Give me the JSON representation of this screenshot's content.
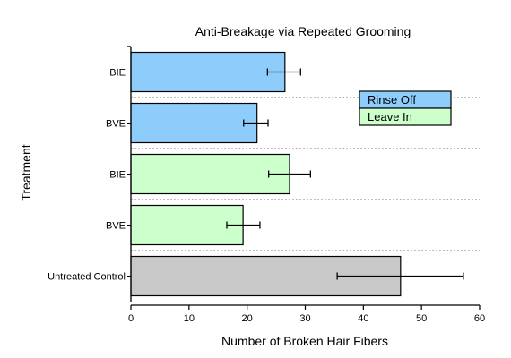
{
  "chart_data": {
    "type": "bar",
    "orientation": "horizontal",
    "title": "Anti-Breakage via Repeated Grooming",
    "xlabel": "Number of Broken Hair Fibers",
    "ylabel": "Treatment",
    "xlim": [
      0,
      60
    ],
    "xticks": [
      0,
      10,
      20,
      30,
      40,
      50,
      60
    ],
    "grid": "dashed separators between bar groups",
    "legend_position": "top-right",
    "legend": [
      {
        "name": "Rinse Off",
        "color": "#8ecdfb"
      },
      {
        "name": "Leave In",
        "color": "#ccffcc"
      }
    ],
    "bars": [
      {
        "label": "BIE",
        "group": "Rinse Off",
        "value": 26.5,
        "err_low": 23.5,
        "err_high": 29.2,
        "color": "#8ecdfb"
      },
      {
        "label": "BVE",
        "group": "Rinse Off",
        "value": 21.7,
        "err_low": 19.4,
        "err_high": 23.6,
        "color": "#8ecdfb"
      },
      {
        "label": "BIE",
        "group": "Leave In",
        "value": 27.3,
        "err_low": 23.7,
        "err_high": 30.9,
        "color": "#ccffcc"
      },
      {
        "label": "BVE",
        "group": "Leave In",
        "value": 19.3,
        "err_low": 16.5,
        "err_high": 22.2,
        "color": "#ccffcc"
      },
      {
        "label": "Untreated Control",
        "group": "Control",
        "value": 46.4,
        "err_low": 35.5,
        "err_high": 57.2,
        "color": "#c8c8c8"
      }
    ]
  }
}
